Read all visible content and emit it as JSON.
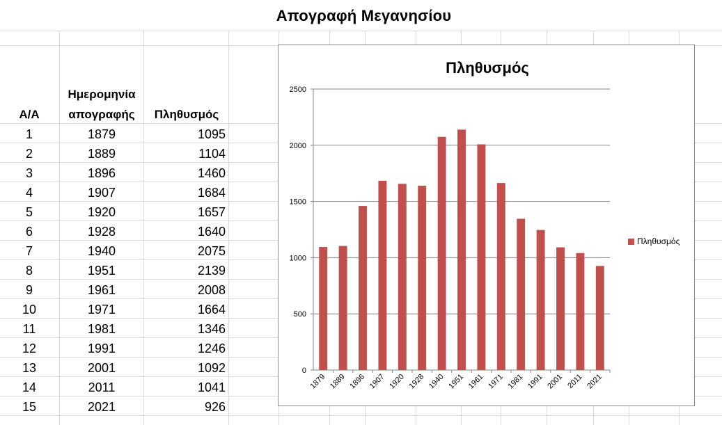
{
  "sheet": {
    "title": "Απογραφή Μεγανησίου",
    "headers": {
      "index": "Α/Α",
      "date_line1": "Ημερομηνία",
      "date_line2": "απογραφής",
      "population": "Πληθυσμός"
    },
    "rows": [
      {
        "aa": "1",
        "year": "1879",
        "pop": "1095"
      },
      {
        "aa": "2",
        "year": "1889",
        "pop": "1104"
      },
      {
        "aa": "3",
        "year": "1896",
        "pop": "1460"
      },
      {
        "aa": "4",
        "year": "1907",
        "pop": "1684"
      },
      {
        "aa": "5",
        "year": "1920",
        "pop": "1657"
      },
      {
        "aa": "6",
        "year": "1928",
        "pop": "1640"
      },
      {
        "aa": "7",
        "year": "1940",
        "pop": "2075"
      },
      {
        "aa": "8",
        "year": "1951",
        "pop": "2139"
      },
      {
        "aa": "9",
        "year": "1961",
        "pop": "2008"
      },
      {
        "aa": "10",
        "year": "1971",
        "pop": "1664"
      },
      {
        "aa": "11",
        "year": "1981",
        "pop": "1346"
      },
      {
        "aa": "12",
        "year": "1991",
        "pop": "1246"
      },
      {
        "aa": "13",
        "year": "2001",
        "pop": "1092"
      },
      {
        "aa": "14",
        "year": "2011",
        "pop": "1041"
      },
      {
        "aa": "15",
        "year": "2021",
        "pop": "926"
      }
    ]
  },
  "chart_data": {
    "type": "bar",
    "title": "Πληθυσμός",
    "xlabel": "",
    "ylabel": "",
    "categories": [
      "1879",
      "1889",
      "1896",
      "1907",
      "1920",
      "1928",
      "1940",
      "1951",
      "1961",
      "1971",
      "1981",
      "1991",
      "2001",
      "2011",
      "2021"
    ],
    "series": [
      {
        "name": "Πληθυσμός",
        "values": [
          1095,
          1104,
          1460,
          1684,
          1657,
          1640,
          2075,
          2139,
          2008,
          1664,
          1346,
          1246,
          1092,
          1041,
          926
        ],
        "color": "#c0504d"
      }
    ],
    "ylim": [
      0,
      2500
    ],
    "yticks": [
      0,
      500,
      1000,
      1500,
      2000,
      2500
    ],
    "grid": true,
    "legend_position": "right"
  }
}
